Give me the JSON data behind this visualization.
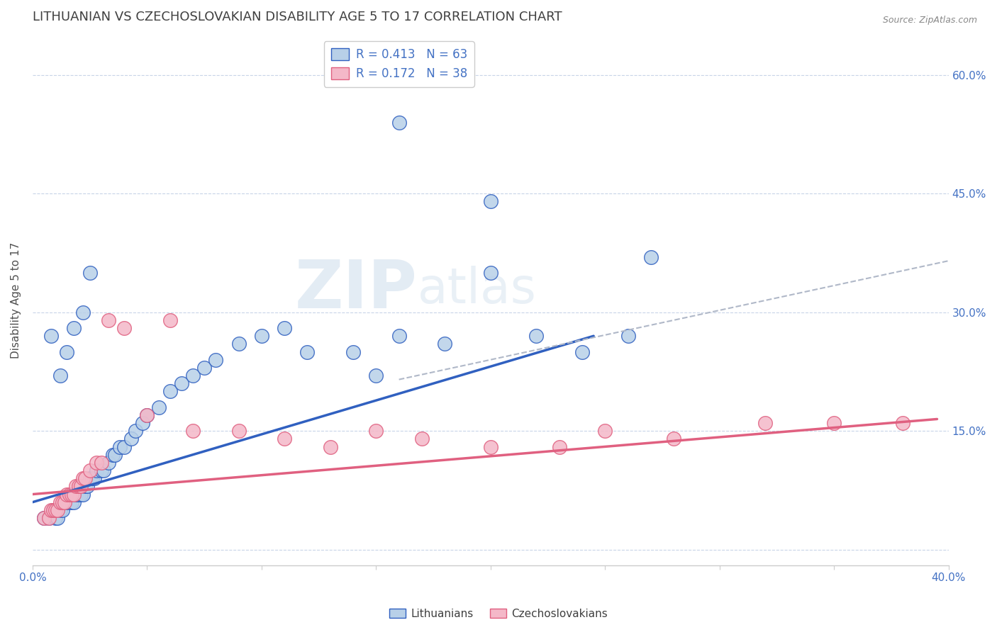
{
  "title": "LITHUANIAN VS CZECHOSLOVAKIAN DISABILITY AGE 5 TO 17 CORRELATION CHART",
  "source_text": "Source: ZipAtlas.com",
  "xlabel": "",
  "ylabel": "Disability Age 5 to 17",
  "xlim": [
    0.0,
    0.4
  ],
  "ylim": [
    -0.02,
    0.65
  ],
  "xticks": [
    0.0,
    0.05,
    0.1,
    0.15,
    0.2,
    0.25,
    0.3,
    0.35,
    0.4
  ],
  "ytick_positions": [
    0.0,
    0.15,
    0.3,
    0.45,
    0.6
  ],
  "ytick_labels": [
    "",
    "15.0%",
    "30.0%",
    "45.0%",
    "60.0%"
  ],
  "xtick_labels": [
    "0.0%",
    "",
    "",
    "",
    "",
    "",
    "",
    "",
    "40.0%"
  ],
  "legend_entry1": "R = 0.413   N = 63",
  "legend_entry2": "R = 0.172   N = 38",
  "legend_labels": [
    "Lithuanians",
    "Czechoslovakians"
  ],
  "watermark_zip": "ZIP",
  "watermark_atlas": "atlas",
  "blue_scatter_x": [
    0.005,
    0.007,
    0.009,
    0.01,
    0.01,
    0.011,
    0.012,
    0.013,
    0.014,
    0.015,
    0.016,
    0.017,
    0.018,
    0.018,
    0.019,
    0.02,
    0.021,
    0.022,
    0.022,
    0.023,
    0.024,
    0.025,
    0.026,
    0.027,
    0.028,
    0.03,
    0.031,
    0.033,
    0.035,
    0.036,
    0.038,
    0.04,
    0.043,
    0.045,
    0.048,
    0.05,
    0.055,
    0.06,
    0.065,
    0.07,
    0.075,
    0.08,
    0.09,
    0.1,
    0.11,
    0.12,
    0.14,
    0.15,
    0.16,
    0.18,
    0.2,
    0.22,
    0.24,
    0.26,
    0.008,
    0.012,
    0.015,
    0.018,
    0.022,
    0.025,
    0.2,
    0.27,
    0.16
  ],
  "blue_scatter_y": [
    0.04,
    0.04,
    0.05,
    0.05,
    0.04,
    0.04,
    0.05,
    0.05,
    0.06,
    0.06,
    0.06,
    0.06,
    0.07,
    0.06,
    0.07,
    0.07,
    0.07,
    0.08,
    0.07,
    0.08,
    0.08,
    0.09,
    0.09,
    0.09,
    0.1,
    0.1,
    0.1,
    0.11,
    0.12,
    0.12,
    0.13,
    0.13,
    0.14,
    0.15,
    0.16,
    0.17,
    0.18,
    0.2,
    0.21,
    0.22,
    0.23,
    0.24,
    0.26,
    0.27,
    0.28,
    0.25,
    0.25,
    0.22,
    0.27,
    0.26,
    0.35,
    0.27,
    0.25,
    0.27,
    0.27,
    0.22,
    0.25,
    0.28,
    0.3,
    0.35,
    0.44,
    0.37,
    0.54
  ],
  "pink_scatter_x": [
    0.005,
    0.007,
    0.008,
    0.009,
    0.01,
    0.011,
    0.012,
    0.013,
    0.014,
    0.015,
    0.016,
    0.017,
    0.018,
    0.019,
    0.02,
    0.021,
    0.022,
    0.023,
    0.025,
    0.028,
    0.03,
    0.033,
    0.04,
    0.05,
    0.06,
    0.07,
    0.09,
    0.11,
    0.13,
    0.15,
    0.17,
    0.2,
    0.23,
    0.25,
    0.28,
    0.32,
    0.35,
    0.38
  ],
  "pink_scatter_y": [
    0.04,
    0.04,
    0.05,
    0.05,
    0.05,
    0.05,
    0.06,
    0.06,
    0.06,
    0.07,
    0.07,
    0.07,
    0.07,
    0.08,
    0.08,
    0.08,
    0.09,
    0.09,
    0.1,
    0.11,
    0.11,
    0.29,
    0.28,
    0.17,
    0.29,
    0.15,
    0.15,
    0.14,
    0.13,
    0.15,
    0.14,
    0.13,
    0.13,
    0.15,
    0.14,
    0.16,
    0.16,
    0.16
  ],
  "blue_line_x": [
    0.0,
    0.245
  ],
  "blue_line_y": [
    0.06,
    0.27
  ],
  "pink_line_x": [
    0.0,
    0.395
  ],
  "pink_line_y": [
    0.07,
    0.165
  ],
  "gray_line_x": [
    0.16,
    0.4
  ],
  "gray_line_y": [
    0.215,
    0.365
  ],
  "dot_color_blue": "#b8d0e8",
  "dot_color_pink": "#f4b8c8",
  "line_color_blue": "#3060c0",
  "line_color_pink": "#e06080",
  "line_color_gray": "#b0b8c8",
  "background_color": "#ffffff",
  "grid_color": "#c8d4e8",
  "title_color": "#404040",
  "axis_label_color": "#505050",
  "tick_label_color": "#4472c4",
  "title_fontsize": 13,
  "ylabel_fontsize": 11
}
